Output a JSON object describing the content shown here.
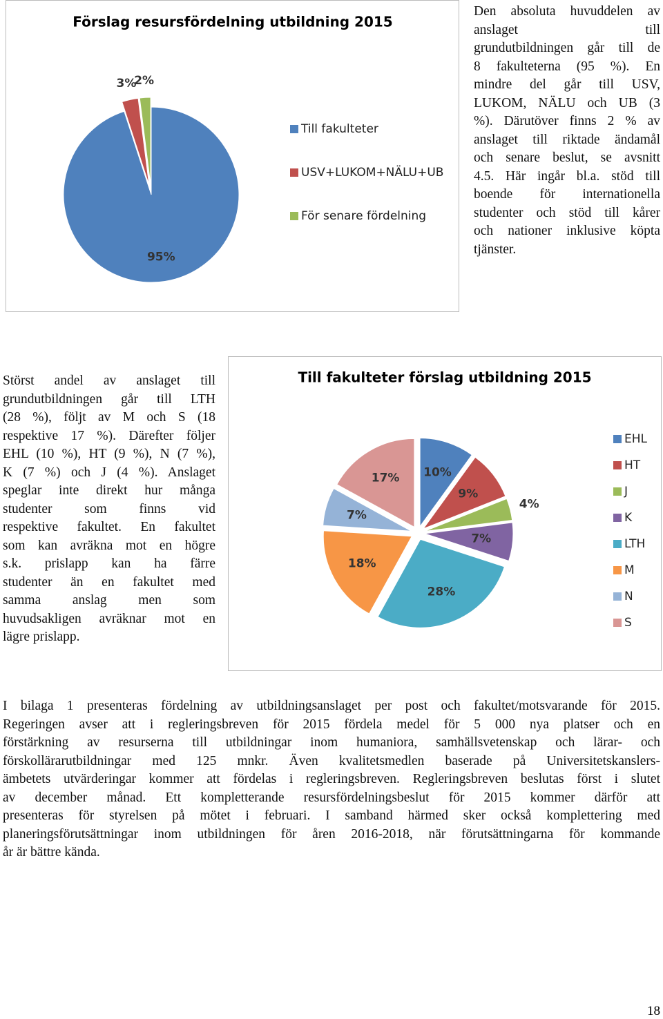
{
  "chart_data": [
    {
      "type": "pie",
      "title": "Förslag resursfördelning utbildning  2015",
      "categories": [
        "Till fakulteter",
        "USV+LUKOM+NÄLU+UB",
        "För senare fördelning"
      ],
      "values": [
        95,
        3,
        2
      ],
      "value_labels": [
        "95%",
        "3%",
        "2%"
      ],
      "colors": [
        "#4f81bd",
        "#c0504d",
        "#9bbb59"
      ],
      "exploded": [
        false,
        true,
        true
      ],
      "legend": "right"
    },
    {
      "type": "pie",
      "title": "Till fakulteter förslag utbildning 2015",
      "categories": [
        "EHL",
        "HT",
        "J",
        "K",
        "LTH",
        "M",
        "N",
        "S"
      ],
      "values": [
        10,
        9,
        4,
        7,
        28,
        18,
        7,
        17
      ],
      "value_labels": [
        "10%",
        "9%",
        "4%",
        "7%",
        "28%",
        "18%",
        "7%",
        "17%"
      ],
      "colors": [
        "#4f81bd",
        "#c0504d",
        "#9bbb59",
        "#8064a2",
        "#4bacc6",
        "#f79646",
        "#95b3d7",
        "#d99694"
      ],
      "exploded": [
        true,
        true,
        true,
        true,
        true,
        true,
        true,
        true
      ],
      "legend": "right"
    }
  ],
  "document": {
    "paragraphs": [
      {
        "lines": [
          "Den absoluta huvuddelen av",
          "anslaget till",
          "grundutbildningen går till de",
          "8 fakulteterna (95 %). En",
          "mindre del går till USV,",
          "LUKOM, NÄLU och UB (3",
          "%). Därutöver finns 2 % av",
          "anslaget till riktade ändamål",
          "och senare beslut, se avsnitt",
          "4.5. Här ingår bl.a. stöd till",
          "boende för internationella",
          "studenter och stöd till kårer",
          "och nationer inklusive köpta",
          "tjänster."
        ]
      },
      {
        "lines": [
          "Störst andel av anslaget till",
          "grundutbildningen går till LTH",
          "(28 %), följt av M och S (18",
          "respektive 17 %). Därefter följer",
          "EHL (10 %), HT (9 %), N (7 %),",
          "K (7 %) och J (4 %). Anslaget",
          "speglar inte direkt hur många",
          "studenter som finns vid",
          "respektive fakultet. En fakultet",
          "som kan avräkna mot en högre",
          "s.k. prislapp kan ha färre",
          "studenter än en fakultet med",
          "samma anslag men som",
          "huvudsakligen avräknar mot en",
          "lägre prislapp."
        ]
      },
      {
        "lines": [
          "I bilaga 1 presenteras fördelning av utbildningsanslaget per post och fakultet/motsvarande för 2015.",
          "Regeringen avser att i regleringsbreven för 2015 fördela medel för 5 000 nya platser och en",
          "förstärkning av resurserna till utbildningar inom humaniora, samhällsvetenskap och lärar- och",
          "förskollärarutbildningar med 125 mnkr. Även kvalitetsmedlen baserade på Universitetskanslers-",
          "ämbetets utvärderingar kommer att fördelas i regleringsbreven. Regleringsbreven beslutas först i slutet",
          "av december månad. Ett kompletterande resursfördelningsbeslut för 2015 kommer därför att",
          "presenteras för styrelsen på mötet i februari. I samband härmed sker också komplettering med",
          "planeringsförutsättningar inom utbildningen för åren 2016-2018, när förutsättningarna för kommande",
          "år är bättre kända."
        ]
      }
    ],
    "page_number": "18"
  }
}
